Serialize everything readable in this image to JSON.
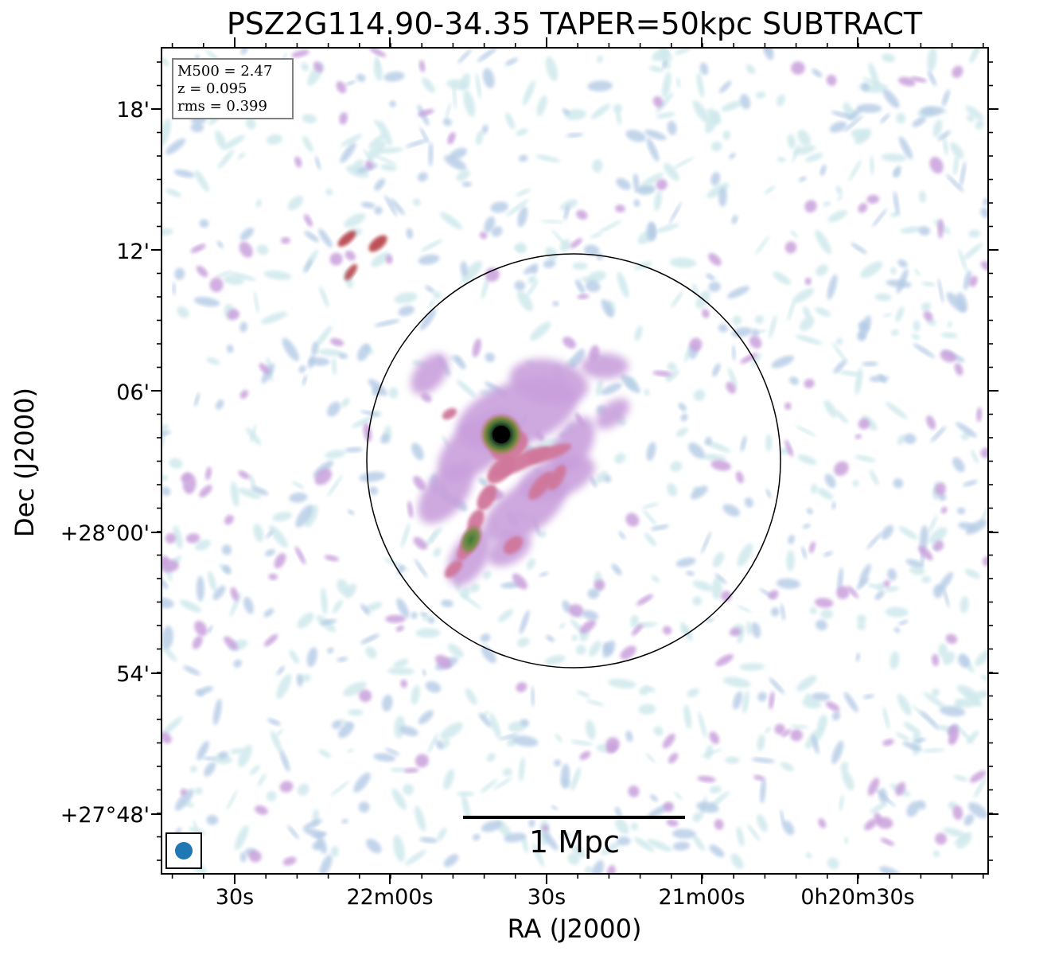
{
  "title": "PSZ2G114.90-34.35 TAPER=50kpc SUBTRACT",
  "axes": {
    "xlabel": "RA (J2000)",
    "ylabel": "Dec (J2000)",
    "x_ticks": [
      "30s",
      "22m00s",
      "30s",
      "21m00s",
      "0h20m30s"
    ],
    "y_ticks": [
      "18'",
      "12'",
      "06'",
      "+28°00'",
      "54'",
      "+27°48'"
    ]
  },
  "info_box": {
    "m500": "M500 = 2.47",
    "z": "z = 0.095",
    "rms": "rms = 0.399"
  },
  "scale_bar": {
    "label": "1 Mpc"
  },
  "colors": {
    "frame": "#000000",
    "noise_light": "#cfe9ec",
    "noise_blue": "#b4cbe6",
    "emission_purple": "#c9a0dc",
    "emission_pink": "#d0769a",
    "emission_red": "#b8484f",
    "emission_green": "#4c8a3a",
    "core": "#000000",
    "beam": "#1f77b4"
  }
}
